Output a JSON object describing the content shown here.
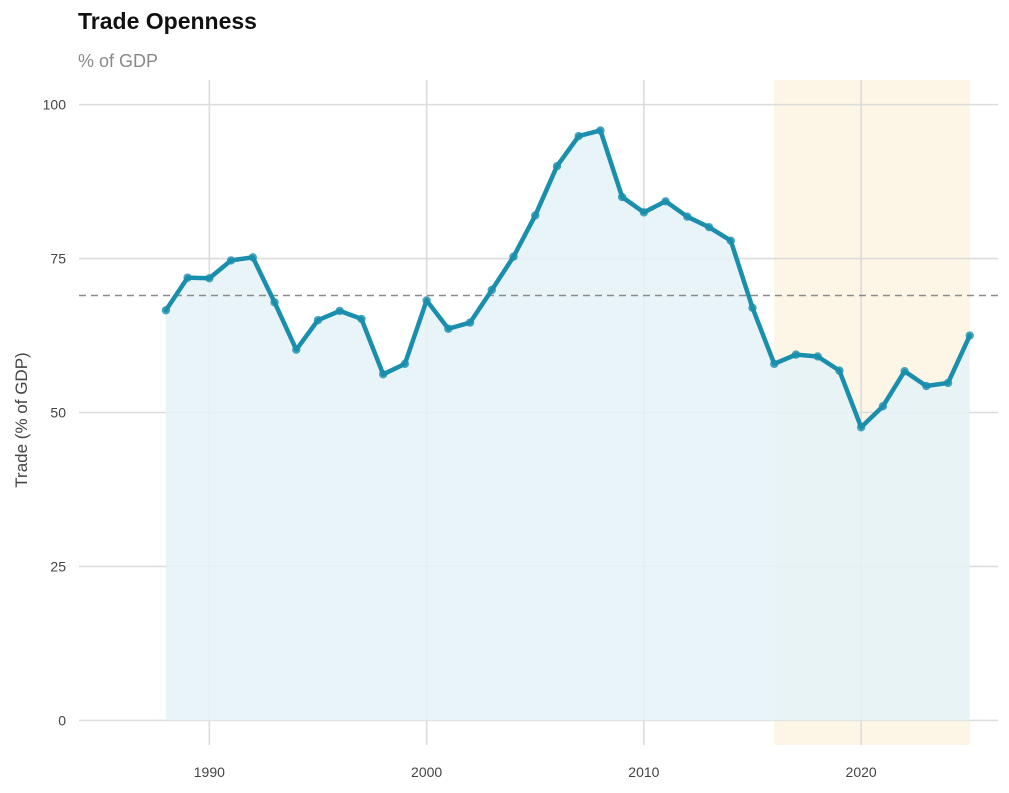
{
  "chart_data": {
    "type": "line",
    "title": "Trade Openness",
    "subtitle": "% of GDP",
    "xlabel": "",
    "ylabel": "Trade (% of GDP)",
    "xlim": [
      1984,
      2026.3
    ],
    "ylim": [
      -4,
      104
    ],
    "xticks": [
      1990,
      2000,
      2010,
      2020
    ],
    "yticks": [
      0,
      25,
      50,
      75,
      100
    ],
    "grid": true,
    "reference_line": 69,
    "highlight_region": [
      2016,
      2025
    ],
    "colors": {
      "line": "#1a8fad",
      "area": "#e4f2f7",
      "highlight": "#fdf5e6",
      "reference": "#8c8c8c"
    },
    "series": [
      {
        "x": [
          1988,
          1989,
          1990,
          1991,
          1992,
          1993,
          1994,
          1995,
          1996,
          1997,
          1998,
          1999,
          2000,
          2001,
          2002,
          2003,
          2004,
          2005,
          2006,
          2007,
          2008,
          2009,
          2010,
          2011,
          2012,
          2013,
          2014,
          2015,
          2016,
          2017,
          2018,
          2019,
          2020,
          2021,
          2022,
          2023,
          2024,
          2025
        ],
        "values": [
          66.6,
          71.9,
          71.8,
          74.7,
          75.2,
          67.9,
          60.2,
          65,
          66.5,
          65.2,
          56.2,
          57.9,
          68.2,
          63.6,
          64.6,
          69.9,
          75.3,
          82,
          90,
          94.9,
          95.8,
          85,
          82.5,
          84.3,
          81.8,
          80.1,
          77.9,
          67,
          57.9,
          59.4,
          59.1,
          56.8,
          47.6,
          51,
          56.7,
          54.3,
          54.8,
          62.5
        ]
      }
    ]
  }
}
